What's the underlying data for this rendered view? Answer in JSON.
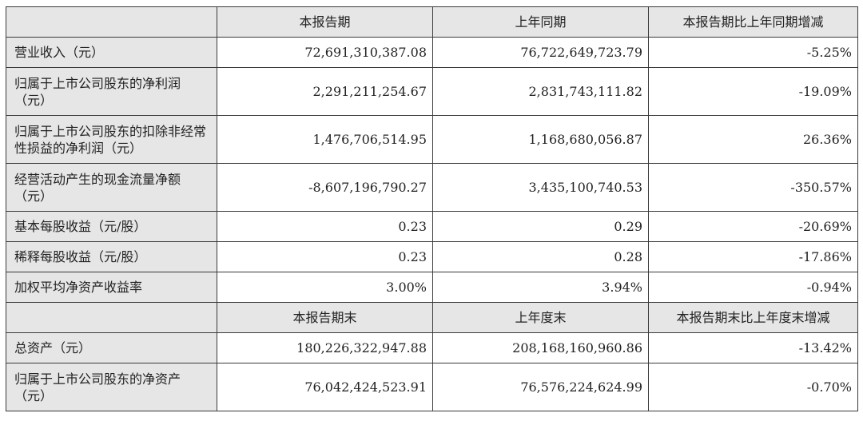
{
  "header1": [
    "",
    "本报告期",
    "上年同期",
    "本报告期比上年同期增减"
  ],
  "rows1": [
    {
      "label": "营业收入（元）",
      "current": "72,691,310,387.08",
      "prior": "76,722,649,723.79",
      "change": "-5.25%",
      "tall": false
    },
    {
      "label": "归属于上市公司股东的净利润（元）",
      "current": "2,291,211,254.67",
      "prior": "2,831,743,111.82",
      "change": "-19.09%",
      "tall": true
    },
    {
      "label": "归属于上市公司股东的扣除非经常性损益的净利润（元）",
      "current": "1,476,706,514.95",
      "prior": "1,168,680,056.87",
      "change": "26.36%",
      "tall": true
    },
    {
      "label": "经营活动产生的现金流量净额（元）",
      "current": "-8,607,196,790.27",
      "prior": "3,435,100,740.53",
      "change": "-350.57%",
      "tall": true
    },
    {
      "label": "基本每股收益（元/股）",
      "current": "0.23",
      "prior": "0.29",
      "change": "-20.69%",
      "tall": false
    },
    {
      "label": "稀释每股收益（元/股）",
      "current": "0.23",
      "prior": "0.28",
      "change": "-17.86%",
      "tall": false
    },
    {
      "label": "加权平均净资产收益率",
      "current": "3.00%",
      "prior": "3.94%",
      "change": "-0.94%",
      "tall": false
    }
  ],
  "header2": [
    "",
    "本报告期末",
    "上年度末",
    "本报告期末比上年度末增减"
  ],
  "rows2": [
    {
      "label": "总资产（元）",
      "current": "180,226,322,947.88",
      "prior": "208,168,160,960.86",
      "change": "-13.42%",
      "tall": false
    },
    {
      "label": "归属于上市公司股东的净资产（元）",
      "current": "76,042,424,523.91",
      "prior": "76,576,224,624.99",
      "change": "-0.70%",
      "tall": true
    }
  ]
}
